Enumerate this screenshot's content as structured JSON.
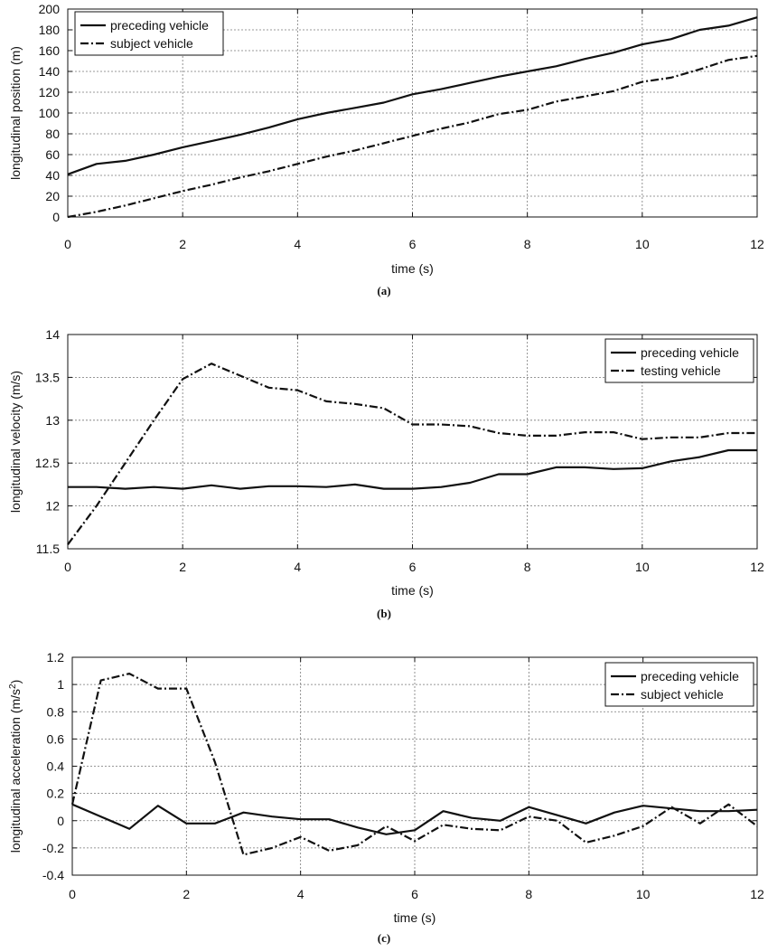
{
  "chart_data": [
    {
      "type": "line",
      "panel_label": "(a)",
      "xlabel": "time (s)",
      "ylabel": "longitudinal position (m)",
      "xlim": [
        0,
        12
      ],
      "ylim": [
        0,
        200
      ],
      "xticks": [
        0,
        2,
        4,
        6,
        8,
        10,
        12
      ],
      "yticks": [
        0,
        20,
        40,
        60,
        80,
        100,
        120,
        140,
        160,
        180,
        200
      ],
      "grid": true,
      "legend_position": "top-left",
      "x": [
        0,
        0.5,
        1,
        1.5,
        2,
        2.5,
        3,
        3.5,
        4,
        4.5,
        5,
        5.5,
        6,
        6.5,
        7,
        7.5,
        8,
        8.5,
        9,
        9.5,
        10,
        10.5,
        11,
        11.5,
        12
      ],
      "series": [
        {
          "name": "preceding vehicle",
          "style": "solid",
          "values": [
            41,
            51,
            54,
            60,
            67,
            73,
            79,
            86,
            94,
            100,
            105,
            110,
            118,
            123,
            129,
            135,
            140,
            145,
            152,
            158,
            166,
            171,
            180,
            184,
            192
          ]
        },
        {
          "name": "subject vehicle",
          "style": "dashdot",
          "values": [
            0,
            5,
            11,
            18,
            25,
            31,
            38,
            44,
            51,
            58,
            64,
            71,
            78,
            85,
            91,
            99,
            103,
            111,
            116,
            121,
            130,
            134,
            142,
            151,
            155
          ]
        }
      ]
    },
    {
      "type": "line",
      "panel_label": "(b)",
      "xlabel": "time (s)",
      "ylabel": "longitudinal velocity (m/s)",
      "xlim": [
        0,
        12
      ],
      "ylim": [
        11.5,
        14
      ],
      "xticks": [
        0,
        2,
        4,
        6,
        8,
        10,
        12
      ],
      "yticks": [
        11.5,
        12,
        12.5,
        13,
        13.5,
        14
      ],
      "grid": true,
      "legend_position": "top-right",
      "x": [
        0,
        0.5,
        1,
        1.5,
        2,
        2.5,
        3,
        3.5,
        4,
        4.5,
        5,
        5.5,
        6,
        6.5,
        7,
        7.5,
        8,
        8.5,
        9,
        9.5,
        10,
        10.5,
        11,
        11.5,
        12
      ],
      "series": [
        {
          "name": "preceding vehicle",
          "style": "solid",
          "values": [
            12.22,
            12.22,
            12.2,
            12.22,
            12.2,
            12.24,
            12.2,
            12.23,
            12.23,
            12.22,
            12.25,
            12.2,
            12.2,
            12.22,
            12.27,
            12.37,
            12.37,
            12.45,
            12.45,
            12.43,
            12.44,
            12.52,
            12.57,
            12.65,
            12.65
          ]
        },
        {
          "name": "testing vehicle",
          "style": "dashdot",
          "values": [
            11.55,
            12.0,
            12.5,
            13.0,
            13.48,
            13.66,
            13.52,
            13.38,
            13.35,
            13.22,
            13.19,
            13.14,
            12.95,
            12.95,
            12.93,
            12.85,
            12.82,
            12.82,
            12.86,
            12.86,
            12.78,
            12.8,
            12.8,
            12.85,
            12.85
          ]
        }
      ]
    },
    {
      "type": "line",
      "panel_label": "(c)",
      "xlabel": "time (s)",
      "ylabel": "longitudinal acceleration (m/s",
      "ylabel_sup": "2",
      "ylabel_end": ")",
      "xlim": [
        0,
        12
      ],
      "ylim": [
        -0.4,
        1.2
      ],
      "xticks": [
        0,
        2,
        4,
        6,
        8,
        10,
        12
      ],
      "yticks": [
        -0.4,
        -0.2,
        0,
        0.2,
        0.4,
        0.6,
        0.8,
        1,
        1.2
      ],
      "grid": true,
      "legend_position": "top-right",
      "x": [
        0,
        0.5,
        1,
        1.5,
        2,
        2.5,
        3,
        3.5,
        4,
        4.5,
        5,
        5.5,
        6,
        6.5,
        7,
        7.5,
        8,
        8.5,
        9,
        9.5,
        10,
        10.5,
        11,
        11.5,
        12
      ],
      "series": [
        {
          "name": "preceding vehicle",
          "style": "solid",
          "values": [
            0.12,
            0.03,
            -0.06,
            0.11,
            -0.02,
            -0.02,
            0.06,
            0.03,
            0.01,
            0.01,
            -0.05,
            -0.1,
            -0.07,
            0.07,
            0.02,
            0.0,
            0.1,
            0.04,
            -0.02,
            0.06,
            0.11,
            0.09,
            0.07,
            0.07,
            0.08
          ]
        },
        {
          "name": "subject vehicle",
          "style": "dashdot",
          "values": [
            0.12,
            1.03,
            1.08,
            0.97,
            0.97,
            0.43,
            -0.25,
            -0.2,
            -0.12,
            -0.22,
            -0.18,
            -0.04,
            -0.15,
            -0.03,
            -0.06,
            -0.07,
            0.03,
            0.0,
            -0.16,
            -0.11,
            -0.04,
            0.1,
            -0.02,
            0.12,
            -0.04
          ]
        }
      ]
    }
  ]
}
